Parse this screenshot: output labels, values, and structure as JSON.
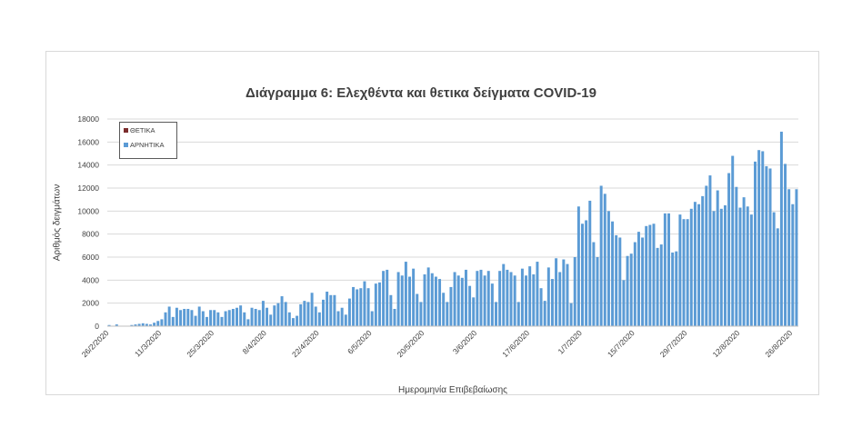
{
  "chart_data": {
    "type": "bar",
    "title": "Διάγραμμα 6: Ελεχθέντα και θετικα δείγματα COVID-19",
    "xlabel": "Ημερομηνία Επιβεβαίωσης",
    "ylabel": "Αριθμός δειγμάτων",
    "ylim": [
      0,
      18000
    ],
    "yticks": [
      0,
      2000,
      4000,
      6000,
      8000,
      10000,
      12000,
      14000,
      16000,
      18000
    ],
    "x_tick_labels": [
      "26/2/2020",
      "11/3/2020",
      "25/3/2020",
      "8/4/2020",
      "22/4/2020",
      "6/5/2020",
      "20/5/2020",
      "3/6/2020",
      "17/6/2020",
      "1/7/2020",
      "15/7/2020",
      "29/7/2020",
      "12/8/2020",
      "26/8/2020"
    ],
    "grid": true,
    "legend_position": "top-left",
    "colors": {
      "positive": "#7b2c2c",
      "negative": "#5b9bd5"
    },
    "series": [
      {
        "name": "ΘΕΤΙΚΑ",
        "values": [
          0,
          0,
          0,
          0,
          0,
          0,
          0,
          0,
          0,
          0,
          0,
          0,
          0,
          0,
          0,
          0,
          0,
          0,
          0,
          0,
          0,
          0,
          0,
          0,
          0,
          0,
          0,
          0,
          0,
          0,
          0,
          0,
          0,
          0,
          0,
          0,
          0,
          0,
          0,
          0,
          0,
          0,
          0,
          0,
          0,
          0,
          0,
          0,
          0,
          0,
          0,
          0,
          0,
          0,
          0,
          0,
          0,
          0,
          0,
          0,
          0,
          0,
          0,
          0,
          0,
          0,
          0,
          0,
          0,
          0,
          0,
          0,
          0,
          0,
          0,
          0,
          0,
          0,
          0,
          0,
          0,
          0,
          0,
          0,
          0,
          0,
          0,
          0,
          0,
          0,
          0,
          0,
          0,
          0,
          0,
          0,
          0,
          0,
          0,
          0,
          0,
          0,
          0,
          0,
          0,
          0,
          0,
          0,
          0,
          0,
          0,
          0,
          0,
          0,
          0,
          0,
          0,
          0,
          0,
          0,
          0,
          0,
          0,
          0,
          0,
          0,
          0,
          0,
          0,
          0,
          0,
          0,
          0,
          0,
          0,
          0,
          0,
          0,
          0,
          0,
          0,
          0,
          0,
          0,
          0,
          0,
          0,
          0,
          0,
          0,
          0,
          0,
          0,
          0,
          0,
          0,
          0,
          0,
          0,
          0,
          0,
          0,
          0,
          0,
          0,
          0,
          0,
          0,
          0,
          0,
          0,
          0,
          0,
          0,
          0,
          0,
          0,
          0,
          0,
          0,
          0,
          0,
          0,
          0,
          0,
          0,
          0,
          0,
          0,
          0,
          0,
          0,
          0,
          0
        ]
      },
      {
        "name": "ΑΡΝΗΤΙΚΑ",
        "values": [
          100,
          0,
          150,
          0,
          0,
          0,
          100,
          150,
          200,
          250,
          200,
          150,
          300,
          450,
          600,
          1200,
          1700,
          800,
          1600,
          1400,
          1500,
          1500,
          1400,
          900,
          1700,
          1300,
          800,
          1400,
          1400,
          1200,
          800,
          1300,
          1400,
          1500,
          1600,
          1800,
          1200,
          600,
          1600,
          1500,
          1400,
          2200,
          1600,
          1000,
          1800,
          2000,
          2600,
          2100,
          1200,
          700,
          900,
          1900,
          2200,
          2100,
          2900,
          1700,
          1200,
          2300,
          3000,
          2700,
          2700,
          1300,
          1600,
          1000,
          2400,
          3400,
          3200,
          3300,
          3900,
          3300,
          1300,
          3700,
          3800,
          4800,
          4900,
          2700,
          1500,
          4700,
          4400,
          5600,
          4300,
          5000,
          2800,
          2100,
          4500,
          5100,
          4600,
          4300,
          4100,
          2900,
          2100,
          3400,
          4700,
          4400,
          4200,
          4900,
          3500,
          2500,
          4800,
          4900,
          4400,
          4800,
          3700,
          2100,
          4800,
          5400,
          4900,
          4700,
          4400,
          2100,
          5000,
          4400,
          5200,
          4500,
          5600,
          3300,
          2200,
          5100,
          4100,
          5900,
          4700,
          5800,
          5400,
          2000,
          6000,
          10400,
          8900,
          9200,
          10900,
          7300,
          6000,
          12200,
          11500,
          10000,
          9100,
          7900,
          7700,
          4000,
          6100,
          6300,
          7300,
          8200,
          7700,
          8700,
          8800,
          8900,
          6800,
          7100,
          9800,
          9800,
          6400,
          6500,
          9700,
          9300,
          9300,
          10200,
          10800,
          10600,
          11300,
          12200,
          13100,
          10000,
          11800,
          10200,
          10500,
          13300,
          14800,
          12100,
          10300,
          11200,
          10400,
          9700,
          14300,
          15300,
          15200,
          13900,
          13700,
          9900,
          8500,
          16900,
          14100,
          11900,
          10600,
          11900
        ]
      }
    ]
  }
}
